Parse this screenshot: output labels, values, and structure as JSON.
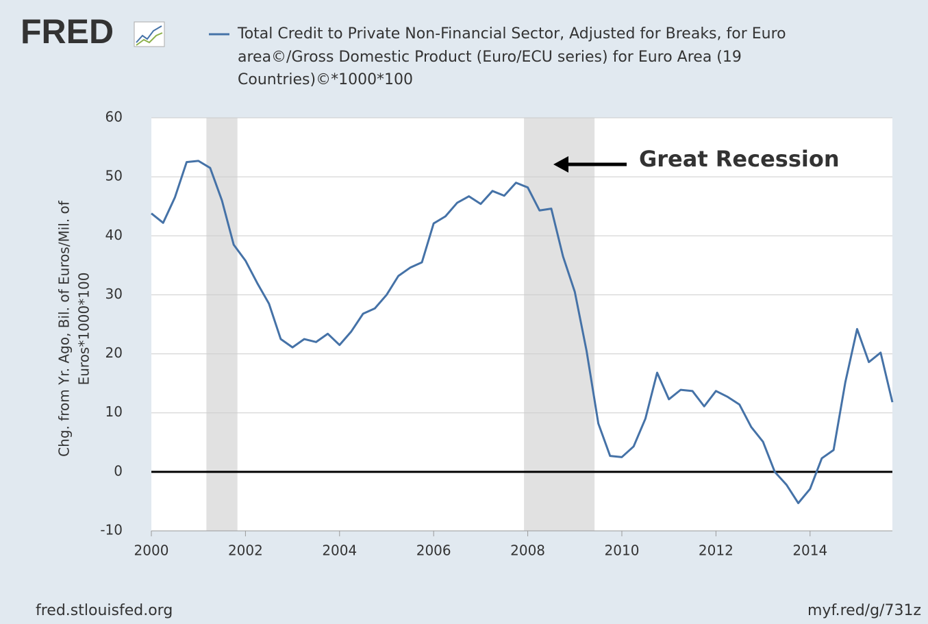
{
  "chart_data": {
    "type": "line",
    "logo": "FRED",
    "title": [
      "Total Credit to Private Non-Financial Sector, Adjusted for Breaks, for Euro",
      "area©/Gross Domestic Product (Euro/ECU series) for Euro Area (19",
      "Countries)©*1000*100"
    ],
    "ylabel": [
      "Chg. from Yr. Ago, Bil. of Euros/Mil. of",
      "Euros*1000*100"
    ],
    "annotation": "Great Recession",
    "footer_left": "fred.stlouisfed.org",
    "footer_right": "myf.red/g/731z",
    "x": [
      2000,
      2000.25,
      2000.5,
      2000.75,
      2001,
      2001.25,
      2001.5,
      2001.75,
      2002,
      2002.25,
      2002.5,
      2002.75,
      2003,
      2003.25,
      2003.5,
      2003.75,
      2004,
      2004.25,
      2004.5,
      2004.75,
      2005,
      2005.25,
      2005.5,
      2005.75,
      2006,
      2006.25,
      2006.5,
      2006.75,
      2007,
      2007.25,
      2007.5,
      2007.75,
      2008,
      2008.25,
      2008.5,
      2008.75,
      2009,
      2009.25,
      2009.5,
      2009.75,
      2010,
      2010.25,
      2010.5,
      2010.75,
      2011,
      2011.25,
      2011.5,
      2011.75,
      2012,
      2012.25,
      2012.5,
      2012.75,
      2013,
      2013.25,
      2013.5,
      2013.75,
      2014,
      2014.25,
      2014.5,
      2014.75,
      2015,
      2015.25,
      2015.5,
      2015.75
    ],
    "series": [
      {
        "name": "Total Credit to Private Non-Financial Sector, Adjusted for Breaks, for Euro area©/Gross Domestic Product (Euro/ECU series) for Euro Area (19 Countries)©*1000*100",
        "color": "#4572a7",
        "values": [
          43.8,
          42.2,
          46.5,
          52.5,
          52.7,
          51.5,
          46,
          38.5,
          35.8,
          32,
          28.5,
          22.5,
          21.1,
          22.5,
          22,
          23.4,
          21.5,
          23.8,
          26.8,
          27.7,
          30,
          33.2,
          34.6,
          35.5,
          42.1,
          43.3,
          45.6,
          46.7,
          45.4,
          47.6,
          46.8,
          49,
          48.2,
          44.3,
          44.6,
          36.5,
          30.5,
          20.5,
          8.2,
          2.7,
          2.5,
          4.3,
          9,
          16.8,
          12.3,
          13.9,
          13.7,
          11.1,
          13.7,
          12.7,
          11.4,
          7.6,
          5.1,
          0,
          -2.2,
          -5.3,
          -2.9,
          2.3,
          3.7,
          15.2,
          24.2,
          18.6,
          20.2,
          11.8
        ]
      }
    ],
    "recessions": [
      [
        2001.17,
        2001.83
      ],
      [
        2007.92,
        2009.42
      ]
    ],
    "xlim": [
      2000,
      2015.75
    ],
    "xticks": [
      2000,
      2002,
      2004,
      2006,
      2008,
      2010,
      2012,
      2014
    ],
    "ylim": [
      -10,
      60
    ],
    "yticks": [
      -10,
      0,
      10,
      20,
      30,
      40,
      50,
      60
    ],
    "grid": true,
    "zero_line": true
  }
}
